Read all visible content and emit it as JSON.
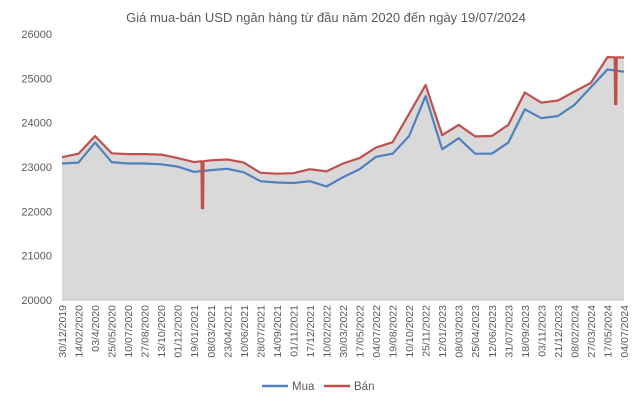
{
  "chart_data": {
    "type": "line",
    "title": "Giá mua-bán USD ngân hàng từ đầu năm 2020 đến ngày 19/07/2024",
    "xlabel": "",
    "ylabel": "",
    "ylim": [
      20000,
      26000
    ],
    "yticks": [
      20000,
      21000,
      22000,
      23000,
      24000,
      25000,
      26000
    ],
    "grid": false,
    "legend_position": "bottom",
    "x_tick_labels": [
      "30/12/2019",
      "14/02/2020",
      "03/4/2020",
      "25/05/2020",
      "10/07/2020",
      "27/08/2020",
      "13/10/2020",
      "01/12/2020",
      "19/01/2021",
      "08/03/2021",
      "23/04/2021",
      "10/06/2021",
      "28/07/2021",
      "14/09/2021",
      "01/11/2021",
      "17/12/2021",
      "10/02/2022",
      "30/03/2022",
      "17/05/2022",
      "04/07/2022",
      "19/08/2022",
      "10/10/2022",
      "25/11/2022",
      "12/01/2023",
      "08/03/2023",
      "25/04/2023",
      "12/06/2023",
      "31/07/2023",
      "18/09/2023",
      "03/11/2023",
      "21/12/2023",
      "08/02/2024",
      "27/03/2024",
      "17/05/2024",
      "04/07/2024"
    ],
    "series": [
      {
        "name": "Bán",
        "color": "#c0504d",
        "x": [
          "30/12/2019",
          "14/02/2020",
          "03/4/2020",
          "25/05/2020",
          "10/07/2020",
          "27/08/2020",
          "13/10/2020",
          "01/12/2020",
          "19/01/2021",
          "08/03/2021",
          "23/04/2021",
          "10/06/2021",
          "28/07/2021",
          "14/09/2021",
          "01/11/2021",
          "17/12/2021",
          "10/02/2022",
          "30/03/2022",
          "17/05/2022",
          "04/07/2022",
          "19/08/2022",
          "10/10/2022",
          "25/11/2022",
          "12/01/2023",
          "08/03/2023",
          "25/04/2023",
          "12/06/2023",
          "31/07/2023",
          "18/09/2023",
          "03/11/2023",
          "21/12/2023",
          "08/02/2024",
          "27/03/2024",
          "17/05/2024",
          "04/07/2024"
        ],
        "values": [
          23220,
          23300,
          23700,
          23310,
          23290,
          23290,
          23280,
          23200,
          23110,
          23150,
          23170,
          23100,
          22870,
          22850,
          22860,
          22950,
          22900,
          23080,
          23200,
          23440,
          23560,
          24200,
          24850,
          23720,
          23950,
          23690,
          23700,
          23950,
          24680,
          24450,
          24500,
          24700,
          24900,
          25480,
          25470
        ]
      },
      {
        "name": "Mua",
        "color": "#4f81bd",
        "x": [
          "30/12/2019",
          "14/02/2020",
          "03/4/2020",
          "25/05/2020",
          "10/07/2020",
          "27/08/2020",
          "13/10/2020",
          "01/12/2020",
          "19/01/2021",
          "08/03/2021",
          "23/04/2021",
          "10/06/2021",
          "28/07/2021",
          "14/09/2021",
          "01/11/2021",
          "17/12/2021",
          "10/02/2022",
          "30/03/2022",
          "17/05/2022",
          "04/07/2022",
          "19/08/2022",
          "10/10/2022",
          "25/11/2022",
          "12/01/2023",
          "08/03/2023",
          "25/04/2023",
          "12/06/2023",
          "31/07/2023",
          "18/09/2023",
          "03/11/2023",
          "21/12/2023",
          "08/02/2024",
          "27/03/2024",
          "17/05/2024",
          "04/07/2024"
        ],
        "values": [
          23080,
          23100,
          23550,
          23110,
          23080,
          23080,
          23060,
          23010,
          22890,
          22930,
          22960,
          22880,
          22680,
          22650,
          22640,
          22680,
          22560,
          22770,
          22950,
          23230,
          23300,
          23700,
          24600,
          23400,
          23650,
          23300,
          23300,
          23550,
          24300,
          24100,
          24150,
          24400,
          24800,
          25200,
          25150
        ]
      }
    ],
    "annotations": [
      {
        "series": "Bán",
        "between": [
          "19/01/2021",
          "08/03/2021"
        ],
        "value": 22070,
        "kind": "dip"
      },
      {
        "series": "Bán",
        "between": [
          "17/05/2024",
          "04/07/2024"
        ],
        "value": 24420,
        "kind": "dip"
      }
    ]
  }
}
